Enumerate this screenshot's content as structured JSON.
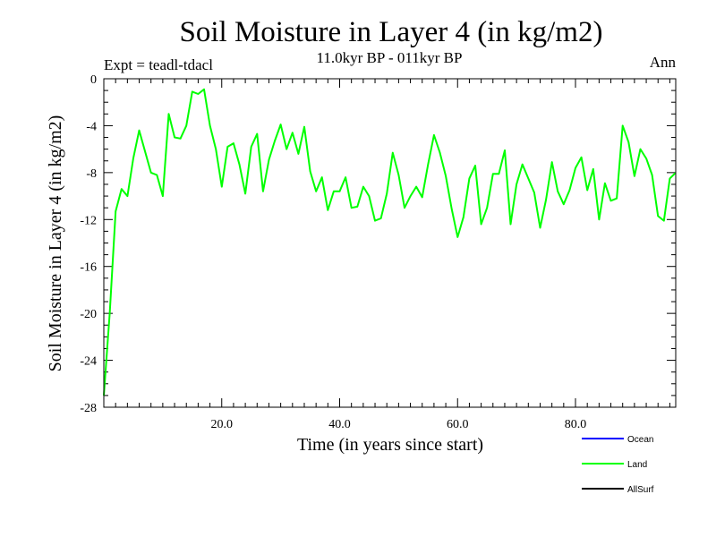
{
  "chart_data": {
    "type": "line",
    "title": "Soil Moisture in Layer 4 (in kg/m2)",
    "subtitle": "11.0kyr BP - 011kyr BP",
    "experiment_label": "Expt = teadl-tdacl",
    "period_label": "Ann",
    "xlabel": "Time (in years since start)",
    "ylabel": "Soil Moisture in Layer 4 (in kg/m2)",
    "xlim": [
      0,
      97
    ],
    "ylim": [
      -28,
      0
    ],
    "x_ticks": [
      20,
      40,
      60,
      80
    ],
    "x_tick_labels": [
      "20.0",
      "40.0",
      "60.0",
      "80.0"
    ],
    "y_ticks": [
      0,
      -4,
      -8,
      -12,
      -16,
      -20,
      -24,
      -28
    ],
    "y_tick_labels": [
      "0",
      "-4",
      "-8",
      "-12",
      "-16",
      "-20",
      "-24",
      "-28"
    ],
    "legend": [
      {
        "name": "Ocean",
        "color": "#0000ff"
      },
      {
        "name": "Land",
        "color": "#00ff00"
      },
      {
        "name": "AllSurf",
        "color": "#000000"
      }
    ],
    "series": [
      {
        "name": "Land",
        "color": "#00ff00",
        "x": [
          0,
          1,
          2,
          3,
          4,
          5,
          6,
          7,
          8,
          9,
          10,
          11,
          12,
          13,
          14,
          15,
          16,
          17,
          18,
          19,
          20,
          21,
          22,
          23,
          24,
          25,
          26,
          27,
          28,
          29,
          30,
          31,
          32,
          33,
          34,
          35,
          36,
          37,
          38,
          39,
          40,
          41,
          42,
          43,
          44,
          45,
          46,
          47,
          48,
          49,
          50,
          51,
          52,
          53,
          54,
          55,
          56,
          57,
          58,
          59,
          60,
          61,
          62,
          63,
          64,
          65,
          66,
          67,
          68,
          69,
          70,
          71,
          72,
          73,
          74,
          75,
          76,
          77,
          78,
          79,
          80,
          81,
          82,
          83,
          84,
          85,
          86,
          87,
          88,
          89,
          90,
          91,
          92,
          93,
          94,
          95,
          96,
          97
        ],
        "values": [
          -27.0,
          -20.0,
          -11.3,
          -9.4,
          -10.0,
          -6.8,
          -4.4,
          -6.2,
          -8.0,
          -8.2,
          -10.0,
          -3.0,
          -5.0,
          -5.1,
          -4.0,
          -1.1,
          -1.3,
          -0.9,
          -4.0,
          -6.0,
          -9.2,
          -5.8,
          -5.5,
          -7.3,
          -9.8,
          -5.8,
          -4.7,
          -9.6,
          -6.9,
          -5.3,
          -3.9,
          -6.0,
          -4.6,
          -6.4,
          -4.1,
          -7.9,
          -9.6,
          -8.4,
          -11.2,
          -9.6,
          -9.6,
          -8.4,
          -11.0,
          -10.9,
          -9.2,
          -10.0,
          -12.1,
          -11.9,
          -9.8,
          -6.3,
          -8.2,
          -11.0,
          -10.0,
          -9.2,
          -10.1,
          -7.3,
          -4.8,
          -6.3,
          -8.3,
          -11.1,
          -13.5,
          -11.8,
          -8.5,
          -7.4,
          -12.4,
          -11.0,
          -8.1,
          -8.1,
          -6.1,
          -12.4,
          -9.0,
          -7.3,
          -8.5,
          -9.7,
          -12.7,
          -10.3,
          -7.1,
          -9.6,
          -10.7,
          -9.5,
          -7.6,
          -6.7,
          -9.5,
          -7.7,
          -12.0,
          -8.9,
          -10.4,
          -10.2,
          -4.0,
          -5.4,
          -8.3,
          -6.0,
          -6.8,
          -8.2,
          -11.7,
          -12.1,
          -8.5,
          -8.0
        ]
      }
    ]
  }
}
